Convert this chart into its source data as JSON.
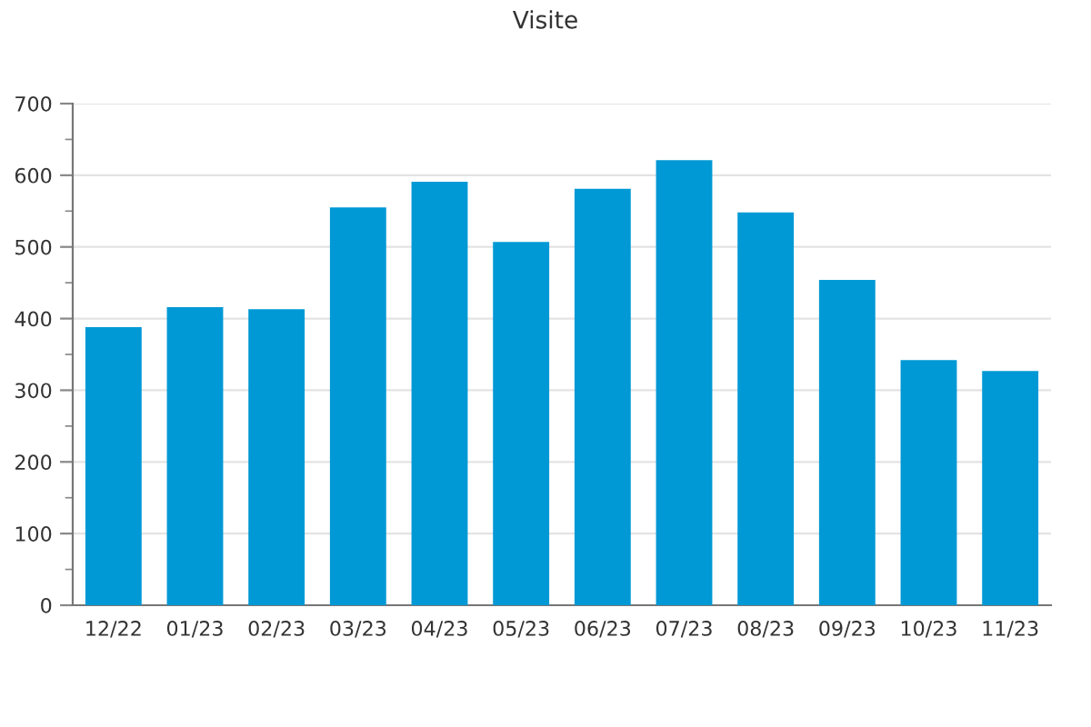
{
  "chart_data": {
    "type": "bar",
    "title": "Visite",
    "categories": [
      "12/22",
      "01/23",
      "02/23",
      "03/23",
      "04/23",
      "05/23",
      "06/23",
      "07/23",
      "08/23",
      "09/23",
      "10/23",
      "11/23"
    ],
    "values": [
      388,
      416,
      413,
      555,
      591,
      507,
      581,
      621,
      548,
      454,
      342,
      327
    ],
    "color": "#0099d5",
    "ylim": [
      0,
      700
    ],
    "yticks": [
      0,
      {
        "value": 50,
        "label": null
      },
      100,
      {
        "value": 150,
        "label": null
      },
      200,
      {
        "value": 250,
        "label": null
      },
      300,
      {
        "value": 350,
        "label": null
      },
      400,
      {
        "value": 450,
        "label": null
      },
      500,
      {
        "value": 550,
        "label": null
      },
      600,
      {
        "value": 650,
        "label": null
      },
      700
    ],
    "grid": "y"
  }
}
